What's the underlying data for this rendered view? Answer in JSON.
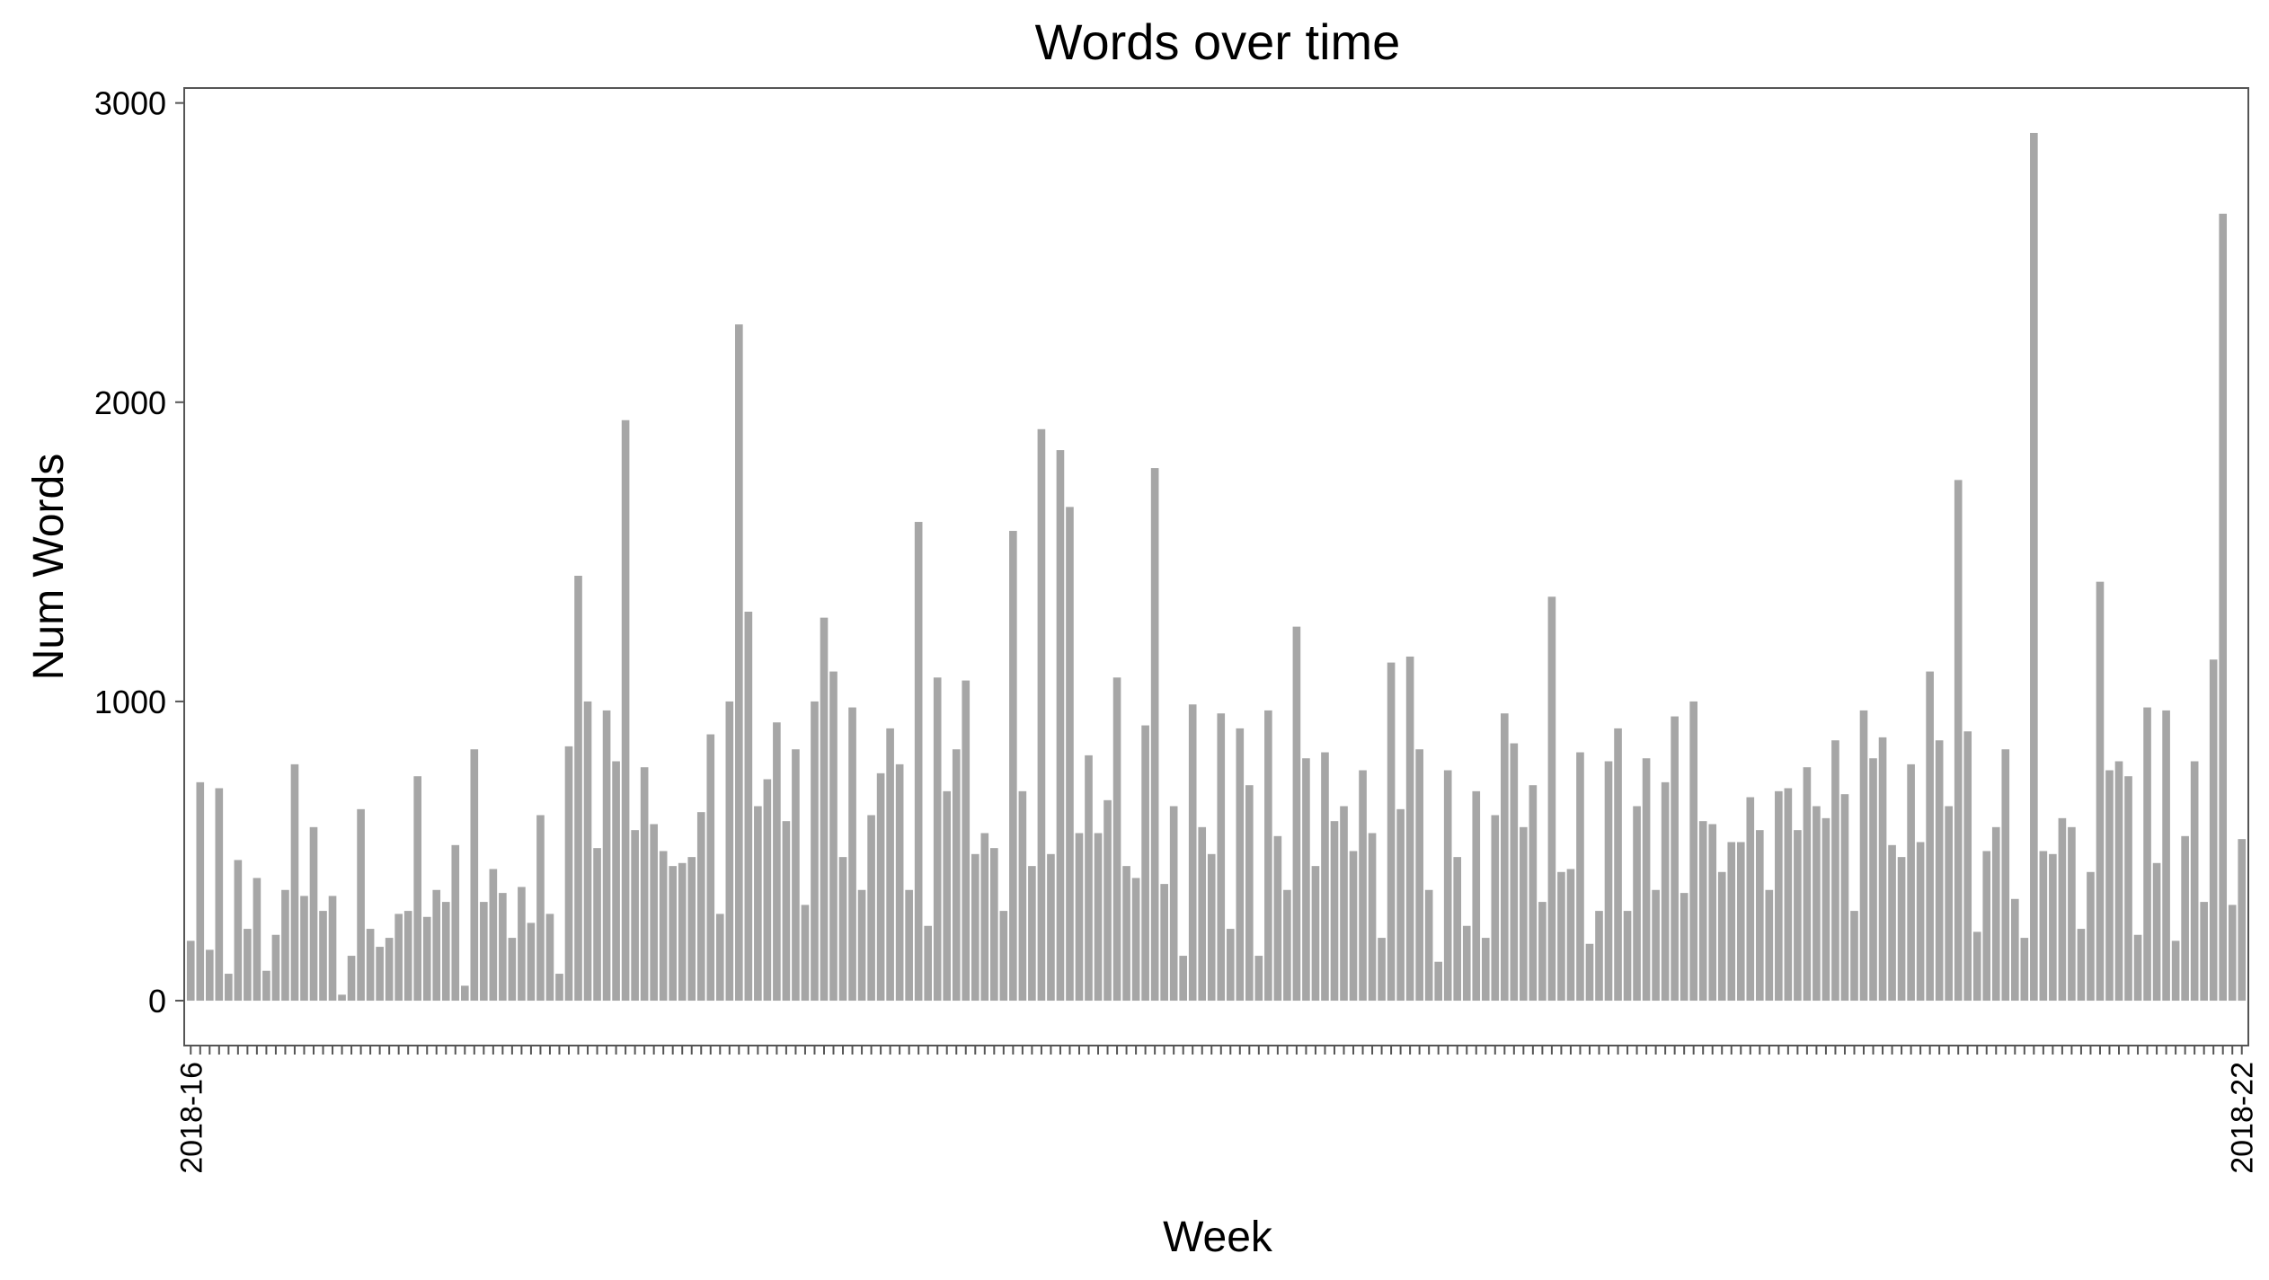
{
  "chart_data": {
    "type": "bar",
    "title": "Words over time",
    "xlabel": "Week",
    "ylabel": "Num Words",
    "ylim": [
      -150,
      3050
    ],
    "yticks": [
      0,
      1000,
      2000,
      3000
    ],
    "grid": false,
    "legend": "none",
    "bar_color": "#a6a6a6",
    "x_tick_labels_visible": [
      "2018-16",
      "2018-22"
    ],
    "values": [
      200,
      730,
      170,
      710,
      90,
      470,
      240,
      410,
      100,
      220,
      370,
      790,
      350,
      580,
      300,
      350,
      20,
      150,
      640,
      240,
      180,
      210,
      290,
      300,
      750,
      280,
      370,
      330,
      520,
      50,
      840,
      330,
      440,
      360,
      210,
      380,
      260,
      620,
      290,
      90,
      850,
      1420,
      1000,
      510,
      970,
      800,
      1940,
      570,
      780,
      590,
      500,
      450,
      460,
      480,
      630,
      890,
      290,
      1000,
      2260,
      1300,
      650,
      740,
      930,
      600,
      840,
      320,
      1000,
      1280,
      1100,
      480,
      980,
      370,
      620,
      760,
      910,
      790,
      370,
      1600,
      250,
      1080,
      700,
      840,
      1070,
      490,
      560,
      510,
      300,
      1570,
      700,
      450,
      1910,
      490,
      1840,
      1650,
      560,
      820,
      560,
      670,
      1080,
      450,
      410,
      920,
      1780,
      390,
      650,
      150,
      990,
      580,
      490,
      960,
      240,
      910,
      720,
      150,
      970,
      550,
      370,
      1250,
      810,
      450,
      830,
      600,
      650,
      500,
      770,
      560,
      210,
      1130,
      640,
      1150,
      840,
      370,
      130,
      770,
      480,
      250,
      700,
      210,
      620,
      960,
      860,
      580,
      720,
      330,
      1350,
      430,
      440,
      830,
      190,
      300,
      800,
      910,
      300,
      650,
      810,
      370,
      730,
      950,
      360,
      1000,
      600,
      590,
      430,
      530,
      530,
      680,
      570,
      370,
      700,
      710,
      570,
      780,
      650,
      610,
      870,
      690,
      300,
      970,
      810,
      880,
      520,
      480,
      790,
      530,
      1100,
      870,
      650,
      1740,
      900,
      230,
      500,
      580,
      840,
      340,
      210,
      2900,
      500,
      490,
      610,
      580,
      240,
      430,
      1400,
      770,
      800,
      750,
      220,
      980,
      460,
      970,
      200,
      550,
      800,
      330,
      1140,
      2630,
      320,
      540
    ]
  }
}
